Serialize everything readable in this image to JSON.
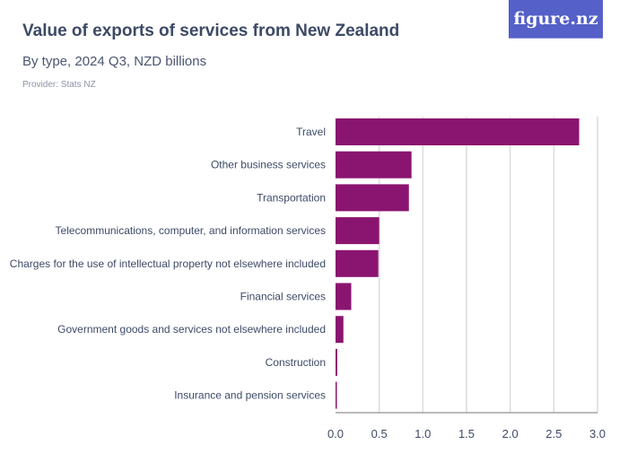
{
  "header": {
    "title": "Value of exports of services from New Zealand",
    "subtitle": "By type, 2024 Q3, NZD billions",
    "provider": "Provider: Stats NZ",
    "logo": "figure.nz"
  },
  "chart_data": {
    "type": "bar",
    "orientation": "horizontal",
    "categories": [
      "Travel",
      "Other business services",
      "Transportation",
      "Telecommunications, computer, and information services",
      "Charges for the use of intellectual property not elsewhere included",
      "Financial services",
      "Government goods and services not elsewhere included",
      "Construction",
      "Insurance and pension services"
    ],
    "values": [
      2.79,
      0.87,
      0.84,
      0.5,
      0.49,
      0.18,
      0.09,
      0.02,
      0.015
    ],
    "xlim": [
      0,
      3.0
    ],
    "xticks": [
      "0.0",
      "0.5",
      "1.0",
      "1.5",
      "2.0",
      "2.5",
      "3.0"
    ],
    "grid": true,
    "bar_color": "#8a1570"
  }
}
